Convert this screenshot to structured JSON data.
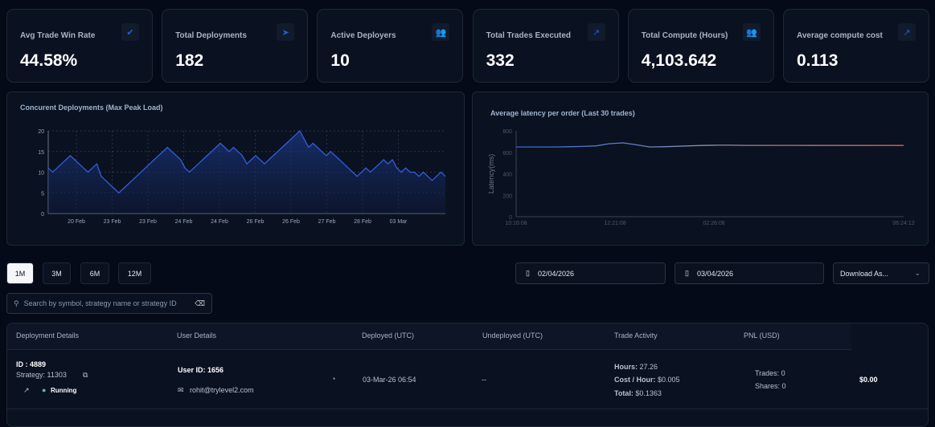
{
  "stats": [
    {
      "label": "Avg Trade Win Rate",
      "value": "44.58%",
      "icon": "check-circle-icon"
    },
    {
      "label": "Total Deployments",
      "value": "182",
      "icon": "send-icon"
    },
    {
      "label": "Active Deployers",
      "value": "10",
      "icon": "users-icon"
    },
    {
      "label": "Total Trades Executed",
      "value": "332",
      "icon": "trend-icon"
    },
    {
      "label": "Total Compute (Hours)",
      "value": "4,103.642",
      "icon": "users-icon"
    },
    {
      "label": "Average compute cost",
      "value": "0.113",
      "icon": "trend-icon"
    }
  ],
  "chart_data": [
    {
      "type": "area",
      "title": "Concurent Deployments (Max Peak Load)",
      "ylim": [
        0,
        20
      ],
      "yticks": [
        0,
        5,
        10,
        15,
        20
      ],
      "xticks": [
        "20 Feb",
        "23 Feb",
        "23 Feb",
        "24 Feb",
        "24 Feb",
        "26 Feb",
        "26 Feb",
        "27 Feb",
        "28 Feb",
        "03 Mar"
      ],
      "values": [
        11,
        10,
        11,
        12,
        13,
        14,
        13,
        12,
        11,
        10,
        11,
        12,
        9,
        8,
        7,
        6,
        5,
        6,
        7,
        8,
        9,
        10,
        11,
        12,
        13,
        14,
        15,
        16,
        15,
        14,
        13,
        11,
        10,
        11,
        12,
        13,
        14,
        15,
        16,
        17,
        16,
        15,
        16,
        15,
        14,
        12,
        13,
        14,
        13,
        12,
        13,
        14,
        15,
        16,
        17,
        18,
        19,
        20,
        18,
        16,
        17,
        16,
        15,
        14,
        15,
        14,
        13,
        12,
        11,
        10,
        9,
        10,
        11,
        10,
        11,
        12,
        13,
        12,
        13,
        11,
        10,
        11,
        10,
        10,
        9,
        10,
        9,
        8,
        9,
        10,
        9
      ],
      "color": "#2f5fe0",
      "grid": true
    },
    {
      "type": "line",
      "title": "Average latency per order (Last 30 trades)",
      "ylabel": "Latency(ms)",
      "ylim": [
        0,
        800
      ],
      "yticks": [
        0,
        200,
        400,
        600,
        800
      ],
      "xticks": [
        "10:16:08",
        "12:21:08",
        "02:26:08",
        "06:24:12"
      ],
      "values": [
        650,
        650,
        650,
        650,
        652,
        655,
        660,
        680,
        688,
        670,
        650,
        652,
        656,
        660,
        664,
        666,
        666,
        665,
        665,
        665,
        665,
        665,
        664,
        664,
        664,
        664,
        664,
        664,
        664,
        664
      ],
      "color_start": "#2f6ae0",
      "color_end": "#e0604a"
    }
  ],
  "ranges": [
    "1M",
    "3M",
    "6M",
    "12M"
  ],
  "active_range": "1M",
  "date_from": "02/04/2026",
  "date_to": "03/04/2026",
  "download": "Download As...",
  "search_placeholder": "Search by symbol, strategy name or strategy ID",
  "table": {
    "headers": [
      "Deployment Details",
      "User Details",
      "Deployed (UTC)",
      "Undeployed (UTC)",
      "Trade Activity",
      "PNL (USD)"
    ],
    "rows": [
      {
        "id": "ID : 4889",
        "strategy": "Strategy:  11303",
        "status": "Running",
        "user_id": "User ID: 1656",
        "email": "rohit@trylevel2.com",
        "deployed": "03-Mar-26 06:54",
        "undeployed": "--",
        "hours_label": "Hours:",
        "hours": "27.26",
        "cost_label": "Cost / Hour:",
        "cost": "$0.005",
        "total_label": "Total:",
        "total": "$0.1363",
        "trades": "Trades: 0",
        "shares": "Shares: 0",
        "pnl": "$0.00"
      }
    ]
  }
}
